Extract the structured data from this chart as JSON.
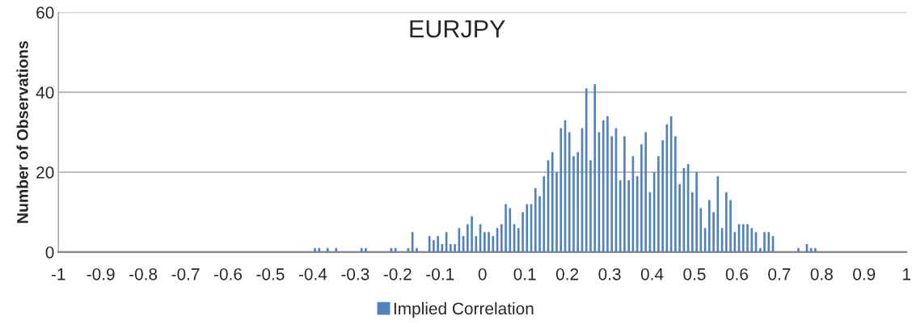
{
  "chart_data": {
    "type": "histogram",
    "title": "EURJPY",
    "ylabel": "Number of Observations",
    "series": [
      {
        "name": "Implied Correlation",
        "color": "#4f81bd",
        "values": [
          0,
          0,
          0,
          0,
          0,
          0,
          0,
          0,
          0,
          0,
          0,
          0,
          0,
          0,
          0,
          0,
          0,
          0,
          0,
          0,
          0,
          0,
          0,
          0,
          0,
          0,
          0,
          0,
          0,
          0,
          0,
          0,
          0,
          0,
          0,
          0,
          0,
          0,
          0,
          0,
          0,
          0,
          0,
          0,
          0,
          0,
          0,
          0,
          0,
          0,
          0,
          0,
          0,
          0,
          0,
          0,
          0,
          0,
          0,
          0,
          1,
          1,
          0,
          1,
          0,
          1,
          0,
          0,
          0,
          0,
          0,
          1,
          1,
          0,
          0,
          0,
          0,
          0,
          1,
          1,
          0,
          0,
          1,
          5,
          1,
          0,
          0,
          4,
          3,
          4,
          2,
          5,
          2,
          2,
          6,
          4,
          7,
          9,
          4,
          7,
          5,
          5,
          4,
          6,
          7,
          12,
          11,
          7,
          6,
          10,
          12,
          12,
          16,
          14,
          19,
          23,
          25,
          20,
          31,
          33,
          30,
          24,
          25,
          31,
          41,
          23,
          42,
          30,
          33,
          34,
          29,
          31,
          18,
          29,
          18,
          24,
          19,
          27,
          30,
          15,
          20,
          24,
          28,
          32,
          34,
          29,
          17,
          21,
          22,
          15,
          20,
          11,
          6,
          13,
          10,
          19,
          6,
          15,
          13,
          5,
          7,
          7,
          7,
          6,
          5,
          1,
          5,
          5,
          4,
          0,
          0,
          0,
          0,
          0,
          1,
          0,
          2,
          1,
          1,
          0,
          0,
          0,
          0,
          0,
          0,
          0,
          0,
          0,
          0,
          0,
          0,
          0,
          0,
          0,
          0,
          0,
          0,
          0,
          0,
          0
        ]
      }
    ],
    "bins": [
      -1,
      -0.99,
      -0.98,
      -0.97,
      -0.96,
      -0.95,
      -0.94,
      -0.93,
      -0.92,
      -0.91,
      -0.9,
      -0.89,
      -0.88,
      -0.87,
      -0.86,
      -0.85,
      -0.84,
      -0.83,
      -0.82,
      -0.81,
      -0.8,
      -0.79,
      -0.78,
      -0.77,
      -0.76,
      -0.75,
      -0.74,
      -0.73,
      -0.72,
      -0.71,
      -0.7,
      -0.69,
      -0.68,
      -0.67,
      -0.66,
      -0.65,
      -0.64,
      -0.63,
      -0.62,
      -0.61,
      -0.6,
      -0.59,
      -0.58,
      -0.57,
      -0.56,
      -0.55,
      -0.54,
      -0.53,
      -0.52,
      -0.51,
      -0.5,
      -0.49,
      -0.48,
      -0.47,
      -0.46,
      -0.45,
      -0.44,
      -0.43,
      -0.42,
      -0.41,
      -0.4,
      -0.39,
      -0.38,
      -0.37,
      -0.36,
      -0.35,
      -0.34,
      -0.33,
      -0.32,
      -0.31,
      -0.3,
      -0.29,
      -0.28,
      -0.27,
      -0.26,
      -0.25,
      -0.24,
      -0.23,
      -0.22,
      -0.21,
      -0.2,
      -0.19,
      -0.18,
      -0.17,
      -0.16,
      -0.15,
      -0.14,
      -0.13,
      -0.12,
      -0.11,
      -0.1,
      -0.09,
      -0.08,
      -0.07,
      -0.06,
      -0.05,
      -0.04,
      -0.03,
      -0.02,
      -0.01,
      0,
      0.01,
      0.02,
      0.03,
      0.04,
      0.05,
      0.06,
      0.07,
      0.08,
      0.09,
      0.1,
      0.11,
      0.12,
      0.13,
      0.14,
      0.15,
      0.16,
      0.17,
      0.18,
      0.19,
      0.2,
      0.21,
      0.22,
      0.23,
      0.24,
      0.25,
      0.26,
      0.27,
      0.28,
      0.29,
      0.3,
      0.31,
      0.32,
      0.33,
      0.34,
      0.35,
      0.36,
      0.37,
      0.38,
      0.39,
      0.4,
      0.41,
      0.42,
      0.43,
      0.44,
      0.45,
      0.46,
      0.47,
      0.48,
      0.49,
      0.5,
      0.51,
      0.52,
      0.53,
      0.54,
      0.55,
      0.56,
      0.57,
      0.58,
      0.59,
      0.6,
      0.61,
      0.62,
      0.63,
      0.64,
      0.65,
      0.66,
      0.67,
      0.68,
      0.69,
      0.7,
      0.71,
      0.72,
      0.73,
      0.74,
      0.75,
      0.76,
      0.77,
      0.78,
      0.79,
      0.8,
      0.81,
      0.82,
      0.83,
      0.84,
      0.85,
      0.86,
      0.87,
      0.88,
      0.89,
      0.9,
      0.91,
      0.92,
      0.93,
      0.94,
      0.95,
      0.96,
      0.97,
      0.98,
      0.99,
      1
    ],
    "xlim": [
      -1,
      1
    ],
    "xticks": [
      -1,
      -0.9,
      -0.8,
      -0.7,
      -0.6,
      -0.5,
      -0.4,
      -0.3,
      -0.2,
      -0.1,
      0,
      0.1,
      0.2,
      0.3,
      0.4,
      0.5,
      0.6,
      0.7,
      0.8,
      0.9,
      1
    ],
    "ylim": [
      0,
      60
    ],
    "yticks": [
      0,
      20,
      40,
      60
    ],
    "grid": "y",
    "legend": "bottom"
  }
}
